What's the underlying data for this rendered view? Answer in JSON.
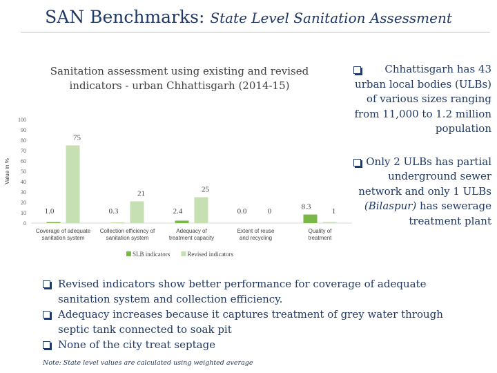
{
  "slide": {
    "title_bold": "SAN Benchmarks:",
    "title_italic": "State Level Sanitation Assessment"
  },
  "chart_data": {
    "type": "bar",
    "title": "Sanitation assessment using existing and revised indicators  - urban Chhattisgarh (2014-15)",
    "ylabel": "Value in %",
    "xlabel": "",
    "ylim": [
      0,
      100
    ],
    "yticks": [
      0,
      10,
      20,
      30,
      40,
      50,
      60,
      70,
      80,
      90,
      100
    ],
    "categories": [
      "Coverage of adequate sanitation system",
      "Collection efficiency of sanitation system",
      "Adequacy of treatment capacity",
      "Extent of reuse and recycling",
      "Quality of treatment"
    ],
    "series": [
      {
        "name": "SLB indicators",
        "values": [
          1.0,
          0.3,
          2.4,
          0.0,
          8.3
        ],
        "labels": [
          "1.0",
          "0.3",
          "2.4",
          "0.0",
          "8.3"
        ]
      },
      {
        "name": "Revised indicators",
        "values": [
          75,
          21,
          25,
          0,
          1
        ],
        "labels": [
          "75",
          "21",
          "25",
          "0",
          "1"
        ]
      }
    ],
    "colors": {
      "SLB indicators": "#7ab648",
      "Revised indicators": "#c6e0b4"
    },
    "grid": false,
    "legend": "bottom"
  },
  "notes_right": [
    "Chhattisgarh has 43 urban local bodies (ULBs) of various sizes ranging from 11,000 to 1.2 million population",
    "Only 2 ULBs has partial underground sewer network and only 1 ULBs",
    "(Bilaspur)",
    "has sewerage treatment plant"
  ],
  "notes_bottom": [
    "Revised indicators show better performance for coverage of adequate sanitation system and collection efficiency.",
    "Adequacy increases because it captures treatment of grey water through septic tank connected to soak pit",
    "None of the city treat septage"
  ],
  "footnote": "Note: State level values are calculated using weighted average"
}
